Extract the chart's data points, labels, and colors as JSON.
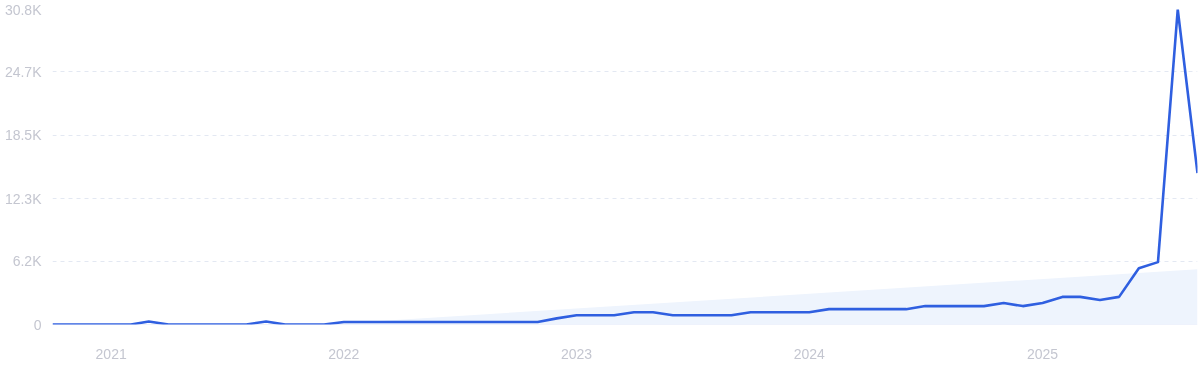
{
  "chart_data": {
    "type": "line",
    "x": [
      "2020-10",
      "2020-11",
      "2020-12",
      "2021-01",
      "2021-02",
      "2021-03",
      "2021-04",
      "2021-05",
      "2021-06",
      "2021-07",
      "2021-08",
      "2021-09",
      "2021-10",
      "2021-11",
      "2021-12",
      "2022-01",
      "2022-02",
      "2022-03",
      "2022-04",
      "2022-05",
      "2022-06",
      "2022-07",
      "2022-08",
      "2022-09",
      "2022-10",
      "2022-11",
      "2022-12",
      "2023-01",
      "2023-02",
      "2023-03",
      "2023-04",
      "2023-05",
      "2023-06",
      "2023-07",
      "2023-08",
      "2023-09",
      "2023-10",
      "2023-11",
      "2023-12",
      "2024-01",
      "2024-02",
      "2024-03",
      "2024-04",
      "2024-05",
      "2024-06",
      "2024-07",
      "2024-08",
      "2024-09",
      "2024-10",
      "2024-11",
      "2024-12",
      "2025-01",
      "2025-02",
      "2025-03",
      "2025-04",
      "2025-05",
      "2025-06",
      "2025-07",
      "2025-08",
      "2025-09"
    ],
    "series": [
      {
        "type": "area",
        "color": "#eef4fd",
        "x": [
          "2021-12",
          "2025-09"
        ],
        "values": [
          0,
          5400
        ]
      },
      {
        "color": "#2f5fe0",
        "values": [
          0,
          0,
          0,
          0,
          0,
          300,
          0,
          0,
          0,
          0,
          0,
          300,
          0,
          0,
          0,
          250,
          250,
          250,
          250,
          250,
          250,
          250,
          250,
          250,
          250,
          250,
          600,
          900,
          900,
          900,
          1200,
          1200,
          900,
          900,
          900,
          900,
          1200,
          1200,
          1200,
          1200,
          1500,
          1500,
          1500,
          1500,
          1500,
          1800,
          1800,
          1800,
          1800,
          2100,
          1800,
          2100,
          2700,
          2700,
          2400,
          2700,
          5500,
          6100,
          30800,
          14800
        ]
      }
    ],
    "xlim": [
      "2020-10",
      "2025-09"
    ],
    "xticks": [
      {
        "value": "2021-01",
        "label": "2021"
      },
      {
        "value": "2022-01",
        "label": "2022"
      },
      {
        "value": "2023-01",
        "label": "2023"
      },
      {
        "value": "2024-01",
        "label": "2024"
      },
      {
        "value": "2025-01",
        "label": "2025"
      }
    ],
    "ylim": [
      0,
      30800
    ],
    "yticks": [
      0,
      {
        "value": 6200,
        "label": "6.2K"
      },
      {
        "value": 12300,
        "label": "12.3K"
      },
      {
        "value": 18500,
        "label": "18.5K"
      },
      {
        "value": 24700,
        "label": "24.7K"
      },
      {
        "value": 30800,
        "label": "30.8K"
      }
    ],
    "grid": "y",
    "line_style": "solid",
    "marker": "none"
  }
}
